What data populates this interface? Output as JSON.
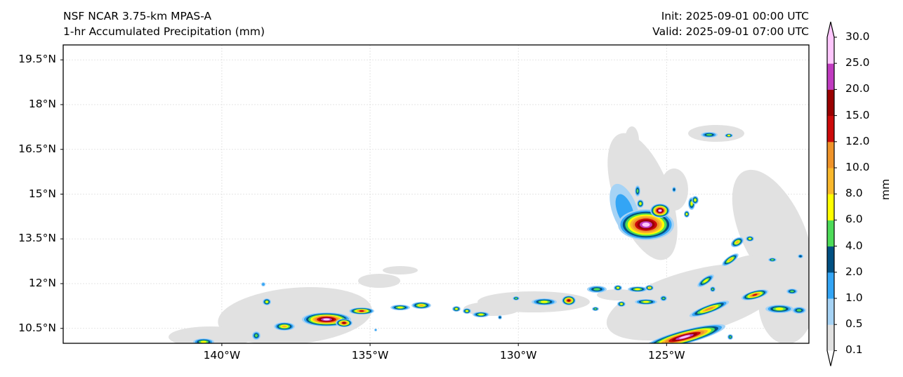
{
  "header": {
    "title_line1": "NSF NCAR 3.75-km MPAS-A",
    "title_line2": "1-hr Accumulated Precipitation (mm)",
    "init": "Init: 2025-09-01 00:00 UTC",
    "valid": "Valid: 2025-09-01 07:00 UTC"
  },
  "map": {
    "lat_labels": [
      "19.5°N",
      "18°N",
      "16.5°N",
      "15°N",
      "13.5°N",
      "12°N",
      "10.5°N"
    ],
    "lat_values": [
      19.5,
      18,
      16.5,
      15,
      13.5,
      12,
      10.5
    ],
    "lon_labels": [
      "140°W",
      "135°W",
      "130°W",
      "125°W"
    ],
    "lon_values": [
      -140,
      -135,
      -130,
      -125
    ],
    "extent": {
      "lon": [
        -145.35,
        -120.2
      ],
      "lat": [
        10,
        20
      ]
    }
  },
  "colorbar": {
    "unit": "mm",
    "ticks": [
      "0.1",
      "0.5",
      "1.0",
      "2.0",
      "4.0",
      "6.0",
      "8.0",
      "10.0",
      "12.0",
      "15.0",
      "20.0",
      "25.0",
      "30.0"
    ],
    "colors": [
      "#e1e1e1",
      "#a6d3f5",
      "#33a5f5",
      "#005082",
      "#4ddb58",
      "#ffff00",
      "#f9b82c",
      "#ef9329",
      "#cc0a0a",
      "#990000",
      "#c03bc0",
      "#fec6fd"
    ],
    "extend_max_color": "#fec6fd",
    "extend_min_color": "#ffffff"
  }
}
